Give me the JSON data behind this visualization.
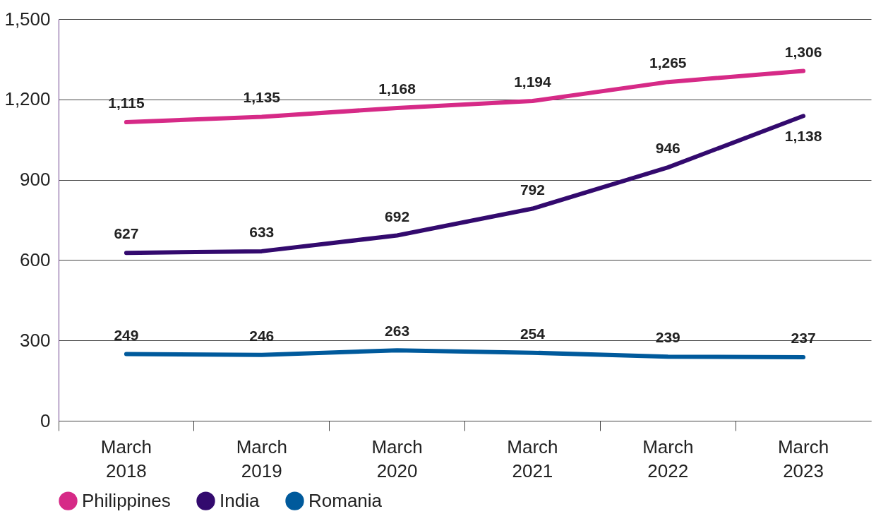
{
  "chart_data": {
    "type": "line",
    "categories": [
      "March 2018",
      "March 2019",
      "March 2020",
      "March 2021",
      "March 2022",
      "March 2023"
    ],
    "series": [
      {
        "name": "Philippines",
        "color": "#d62a87",
        "values": [
          1115,
          1135,
          1168,
          1194,
          1265,
          1306
        ],
        "value_labels": [
          "1,115",
          "1,135",
          "1,168",
          "1,194",
          "1,265",
          "1,306"
        ]
      },
      {
        "name": "India",
        "color": "#330a6e",
        "values": [
          627,
          633,
          692,
          792,
          946,
          1138
        ],
        "value_labels": [
          "627",
          "633",
          "692",
          "792",
          "946",
          "1,138"
        ]
      },
      {
        "name": "Romania",
        "color": "#005a9c",
        "values": [
          249,
          246,
          263,
          254,
          239,
          237
        ],
        "value_labels": [
          "249",
          "246",
          "263",
          "254",
          "239",
          "237"
        ]
      }
    ],
    "ylim": [
      0,
      1500
    ],
    "yticks": [
      0,
      {
        "value": 300,
        "label": "300"
      },
      {
        "value": 600,
        "label": "600"
      },
      {
        "value": 900,
        "label": "900"
      },
      {
        "value": 1200,
        "label": "1,200"
      },
      {
        "value": 1500,
        "label": "1,500"
      }
    ],
    "grid": "y",
    "legend": "bottom left",
    "marker": "none",
    "line_style": "solid"
  }
}
